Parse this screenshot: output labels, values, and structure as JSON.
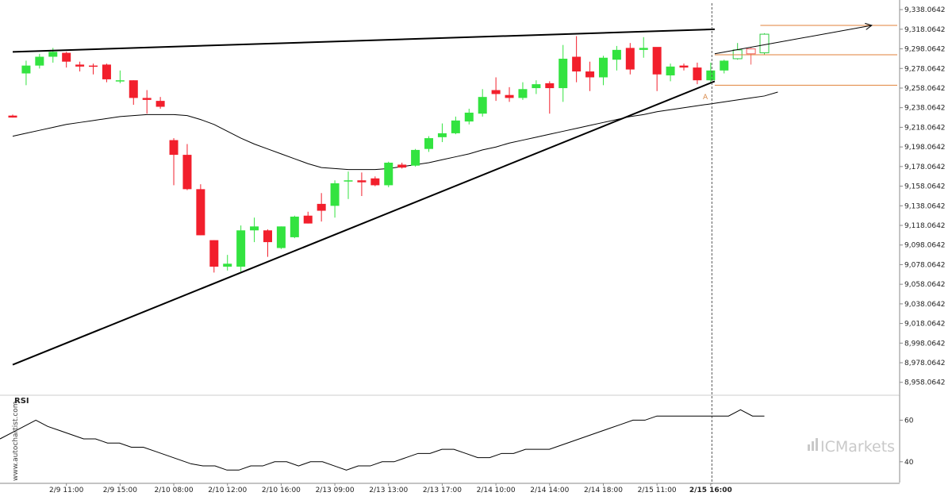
{
  "chart_data": {
    "type": "candlestick",
    "price_axis": {
      "ticks": [
        "9,338.0642",
        "9,318.0642",
        "9,298.0642",
        "9,278.0642",
        "9,258.0642",
        "9,238.0642",
        "9,218.0642",
        "9,198.0642",
        "9,178.0642",
        "9,158.0642",
        "9,138.0642",
        "9,118.0642",
        "9,098.0642",
        "9,078.0642",
        "9,058.0642",
        "9,038.0642",
        "9,018.0642",
        "8,998.0642",
        "8,978.0642",
        "8,958.0642"
      ],
      "tick_values": [
        9338.0642,
        9318.0642,
        9298.0642,
        9278.0642,
        9258.0642,
        9238.0642,
        9218.0642,
        9198.0642,
        9178.0642,
        9158.0642,
        9138.0642,
        9118.0642,
        9098.0642,
        9078.0642,
        9058.0642,
        9038.0642,
        9018.0642,
        8998.0642,
        8978.0642,
        8958.0642
      ],
      "ylim": [
        8953,
        9343
      ]
    },
    "time_axis": {
      "labels": [
        "2/9 11:00",
        "2/9 15:00",
        "2/10 08:00",
        "2/10 12:00",
        "2/10 16:00",
        "2/13 09:00",
        "2/13 13:00",
        "2/13 17:00",
        "2/14 10:00",
        "2/14 14:00",
        "2/14 18:00",
        "2/15 11:00",
        "2/15 16:00"
      ],
      "label_bar_index": [
        4,
        8,
        12,
        16,
        20,
        24,
        28,
        32,
        36,
        40,
        44,
        48,
        52
      ],
      "highlight_label": "2/15 16:00"
    },
    "candles": [
      {
        "o": 9230,
        "h": 9231,
        "l": 9228,
        "c": 9228
      },
      {
        "o": 9273,
        "h": 9286,
        "l": 9261,
        "c": 9281
      },
      {
        "o": 9281,
        "h": 9293,
        "l": 9278,
        "c": 9290
      },
      {
        "o": 9290,
        "h": 9299,
        "l": 9284,
        "c": 9295
      },
      {
        "o": 9294,
        "h": 9295,
        "l": 9279,
        "c": 9285
      },
      {
        "o": 9282,
        "h": 9285,
        "l": 9275,
        "c": 9280
      },
      {
        "o": 9281,
        "h": 9283,
        "l": 9272,
        "c": 9280
      },
      {
        "o": 9282,
        "h": 9283,
        "l": 9264,
        "c": 9267
      },
      {
        "o": 9266,
        "h": 9276,
        "l": 9263,
        "c": 9266
      },
      {
        "o": 9266,
        "h": 9266,
        "l": 9241,
        "c": 9248
      },
      {
        "o": 9248,
        "h": 9256,
        "l": 9232,
        "c": 9246
      },
      {
        "o": 9245,
        "h": 9249,
        "l": 9237,
        "c": 9239
      },
      {
        "o": 9205,
        "h": 9207,
        "l": 9159,
        "c": 9190
      },
      {
        "o": 9190,
        "h": 9201,
        "l": 9154,
        "c": 9155
      },
      {
        "o": 9155,
        "h": 9160,
        "l": 9108,
        "c": 9108
      },
      {
        "o": 9103,
        "h": 9103,
        "l": 9070,
        "c": 9076
      },
      {
        "o": 9076,
        "h": 9088,
        "l": 9072,
        "c": 9079
      },
      {
        "o": 9076,
        "h": 9118,
        "l": 9071,
        "c": 9113
      },
      {
        "o": 9113,
        "h": 9126,
        "l": 9101,
        "c": 9117
      },
      {
        "o": 9113,
        "h": 9114,
        "l": 9086,
        "c": 9101
      },
      {
        "o": 9095,
        "h": 9117,
        "l": 9094,
        "c": 9117
      },
      {
        "o": 9106,
        "h": 9128,
        "l": 9105,
        "c": 9127
      },
      {
        "o": 9128,
        "h": 9132,
        "l": 9120,
        "c": 9120
      },
      {
        "o": 9140,
        "h": 9151,
        "l": 9122,
        "c": 9133
      },
      {
        "o": 9138,
        "h": 9164,
        "l": 9126,
        "c": 9161
      },
      {
        "o": 9163,
        "h": 9173,
        "l": 9145,
        "c": 9164
      },
      {
        "o": 9164,
        "h": 9172,
        "l": 9148,
        "c": 9162
      },
      {
        "o": 9166,
        "h": 9168,
        "l": 9158,
        "c": 9159
      },
      {
        "o": 9159,
        "h": 9183,
        "l": 9157,
        "c": 9182
      },
      {
        "o": 9180,
        "h": 9182,
        "l": 9176,
        "c": 9177
      },
      {
        "o": 9179,
        "h": 9196,
        "l": 9178,
        "c": 9195
      },
      {
        "o": 9196,
        "h": 9209,
        "l": 9193,
        "c": 9207
      },
      {
        "o": 9208,
        "h": 9222,
        "l": 9203,
        "c": 9212
      },
      {
        "o": 9212,
        "h": 9229,
        "l": 9211,
        "c": 9225
      },
      {
        "o": 9224,
        "h": 9237,
        "l": 9221,
        "c": 9233
      },
      {
        "o": 9232,
        "h": 9257,
        "l": 9229,
        "c": 9249
      },
      {
        "o": 9256,
        "h": 9269,
        "l": 9245,
        "c": 9252
      },
      {
        "o": 9251,
        "h": 9259,
        "l": 9244,
        "c": 9248
      },
      {
        "o": 9248,
        "h": 9264,
        "l": 9246,
        "c": 9257
      },
      {
        "o": 9258,
        "h": 9266,
        "l": 9252,
        "c": 9262
      },
      {
        "o": 9263,
        "h": 9265,
        "l": 9232,
        "c": 9258
      },
      {
        "o": 9258,
        "h": 9302,
        "l": 9244,
        "c": 9288
      },
      {
        "o": 9290,
        "h": 9311,
        "l": 9264,
        "c": 9275
      },
      {
        "o": 9275,
        "h": 9285,
        "l": 9255,
        "c": 9269
      },
      {
        "o": 9269,
        "h": 9291,
        "l": 9261,
        "c": 9289
      },
      {
        "o": 9287,
        "h": 9301,
        "l": 9276,
        "c": 9297
      },
      {
        "o": 9299,
        "h": 9304,
        "l": 9272,
        "c": 9277
      },
      {
        "o": 9297,
        "h": 9310,
        "l": 9289,
        "c": 9299
      },
      {
        "o": 9300,
        "h": 9299,
        "l": 9255,
        "c": 9272
      },
      {
        "o": 9271,
        "h": 9283,
        "l": 9265,
        "c": 9280
      },
      {
        "o": 9281,
        "h": 9283,
        "l": 9276,
        "c": 9279
      },
      {
        "o": 9279,
        "h": 9284,
        "l": 9262,
        "c": 9266
      },
      {
        "o": 9266,
        "h": 9284,
        "l": 9263,
        "c": 9276
      },
      {
        "o": 9276,
        "h": 9287,
        "l": 9273,
        "c": 9286
      }
    ],
    "projected_candles": [
      {
        "o": 9288,
        "h": 9304,
        "l": 9287,
        "c": 9297
      },
      {
        "o": 9298,
        "h": 9299,
        "l": 9282,
        "c": 9293
      },
      {
        "o": 9294,
        "h": 9314,
        "l": 9292,
        "c": 9313
      }
    ],
    "moving_average": [
      9209,
      9212,
      9215,
      9218,
      9221,
      9223,
      9225,
      9227,
      9229,
      9230,
      9231,
      9231,
      9231,
      9230,
      9226,
      9221,
      9214,
      9207,
      9201,
      9196,
      9191,
      9186,
      9181,
      9177,
      9176,
      9175,
      9175,
      9175,
      9176,
      9178,
      9180,
      9182,
      9185,
      9188,
      9191,
      9195,
      9198,
      9202,
      9205,
      9208,
      9211,
      9214,
      9217,
      9220,
      9223,
      9226,
      9229,
      9231,
      9234,
      9236,
      9238,
      9240,
      9242,
      9244,
      9246,
      9248,
      9250,
      9254
    ],
    "trendlines": [
      {
        "name": "resistance",
        "points": [
          [
            0,
            9295
          ],
          [
            52.3,
            9318
          ]
        ]
      },
      {
        "name": "support",
        "points": [
          [
            0,
            8976
          ],
          [
            52.3,
            9265
          ]
        ]
      },
      {
        "name": "forecast",
        "points": [
          [
            52.3,
            9293
          ],
          [
            64,
            9322
          ]
        ]
      }
    ],
    "levels": [
      {
        "name": "target",
        "value": 9322
      },
      {
        "name": "resistance-level",
        "value": 9292
      },
      {
        "name": "support-level",
        "value": 9261
      }
    ],
    "pattern_point_label": "A",
    "rsi": {
      "title": "RSI",
      "ticks": [
        "60",
        "40"
      ],
      "tick_values": [
        60,
        40
      ],
      "ylim": [
        30,
        72
      ],
      "values": [
        51,
        54,
        57,
        60,
        57,
        55,
        53,
        51,
        51,
        49,
        49,
        47,
        47,
        45,
        43,
        41,
        39,
        38,
        38,
        36,
        36,
        38,
        38,
        40,
        40,
        38,
        40,
        40,
        38,
        36,
        38,
        38,
        40,
        40,
        42,
        44,
        44,
        46,
        46,
        44,
        42,
        42,
        44,
        44,
        46,
        46,
        46,
        48,
        50,
        52,
        54,
        56,
        58,
        60,
        60,
        62,
        62,
        62,
        62,
        62,
        62,
        62,
        65,
        62,
        62
      ]
    },
    "colors": {
      "bull": "#33e340",
      "bear": "#f21f2c",
      "projected_bull": "#2ecc40",
      "projected_bear": "#f25c5c",
      "trendline": "#000000",
      "moving_average": "#000000",
      "levels": "#e0823a",
      "grid_axis": "#888888"
    }
  },
  "branding": {
    "side_text": "www.autochartist.com",
    "logo_text": "ICMarkets"
  }
}
